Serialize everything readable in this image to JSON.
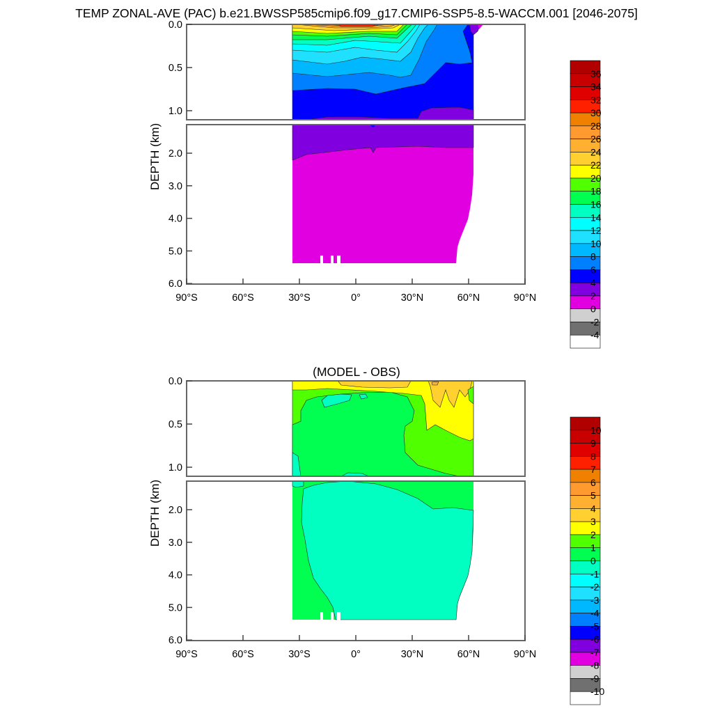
{
  "chart_data": [
    {
      "type": "heatmap",
      "subtype": "filled-contour depth-latitude section",
      "title": "TEMP ZONAL-AVE (PAC) b.e21.BWSSP585cmip6.f09_g17.CMIP6-SSP5-8.5-WACCM.001 [2046-2075]",
      "ylabel": "DEPTH (km)",
      "xlabel": "",
      "xlim": [
        -90,
        90
      ],
      "ylim": [
        6.0,
        0.0
      ],
      "x_ticks": [
        "90°S",
        "60°S",
        "30°S",
        "0°",
        "30°N",
        "60°N",
        "90°N"
      ],
      "y_ticks_upper": [
        "0.0",
        "0.5",
        "1.0"
      ],
      "y_ticks_lower": [
        "2.0",
        "3.0",
        "4.0",
        "5.0",
        "6.0"
      ],
      "data_lat_range": [
        -35,
        62
      ],
      "colorbar": {
        "labels": [
          "36",
          "34",
          "32",
          "30",
          "28",
          "26",
          "24",
          "22",
          "20",
          "18",
          "16",
          "14",
          "12",
          "10",
          "8",
          "6",
          "4",
          "2",
          "0",
          "-2",
          "-4"
        ],
        "colors": [
          "#b00000",
          "#c80000",
          "#e00000",
          "#ff2000",
          "#f08000",
          "#ff9a30",
          "#ffb030",
          "#ffd030",
          "#ffff00",
          "#50ff00",
          "#00ff50",
          "#00ffc0",
          "#00ffff",
          "#20e0ff",
          "#00b8ff",
          "#0080ff",
          "#0000ff",
          "#8000e0",
          "#e000e0",
          "#d0d0d0",
          "#707070",
          "#ffffff"
        ]
      },
      "description_values": {
        "surface_max_approx": 31,
        "deep_values": "0-2"
      }
    },
    {
      "type": "heatmap",
      "subtype": "filled-contour depth-latitude section",
      "title": "(MODEL - OBS)",
      "ylabel": "DEPTH (km)",
      "xlim": [
        -90,
        90
      ],
      "ylim": [
        6.0,
        0.0
      ],
      "x_ticks": [
        "90°S",
        "60°S",
        "30°S",
        "0°",
        "30°N",
        "60°N",
        "90°N"
      ],
      "y_ticks_upper": [
        "0.0",
        "0.5",
        "1.0"
      ],
      "y_ticks_lower": [
        "2.0",
        "3.0",
        "4.0",
        "5.0",
        "6.0"
      ],
      "colorbar": {
        "labels": [
          "10",
          "9",
          "8",
          "7",
          "6",
          "5",
          "4",
          "3",
          "2",
          "1",
          "0",
          "-1",
          "-2",
          "-3",
          "-4",
          "-5",
          "-6",
          "-7",
          "-8",
          "-9",
          "-10"
        ],
        "colors": [
          "#b00000",
          "#c80000",
          "#e00000",
          "#ff2000",
          "#f08000",
          "#ff9a30",
          "#ffb030",
          "#ffd030",
          "#ffff00",
          "#50ff00",
          "#00ff50",
          "#00ffc0",
          "#00ffff",
          "#20e0ff",
          "#00b8ff",
          "#0080ff",
          "#0000ff",
          "#8000e0",
          "#e000e0",
          "#d0d0d0",
          "#707070",
          "#ffffff"
        ]
      }
    }
  ]
}
